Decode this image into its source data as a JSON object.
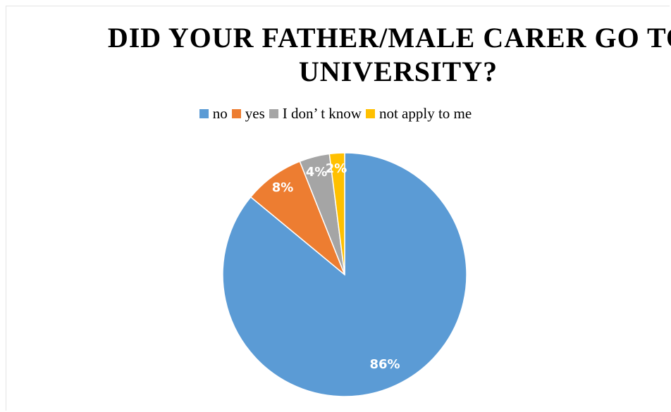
{
  "chart_data": {
    "type": "pie",
    "title": "DID YOUR FATHER/MALE CARER GO TO UNIVERSITY?",
    "legend_position": "top",
    "slices": [
      {
        "label": "no",
        "value": 86,
        "display": "86%",
        "color": "#5b9bd5"
      },
      {
        "label": "yes",
        "value": 8,
        "display": "8%",
        "color": "#ed7d31"
      },
      {
        "label": "I don’ t know",
        "value": 4,
        "display": "4%",
        "color": "#a5a5a5"
      },
      {
        "label": "not apply to me",
        "value": 2,
        "display": "2%",
        "color": "#ffc000"
      }
    ]
  }
}
